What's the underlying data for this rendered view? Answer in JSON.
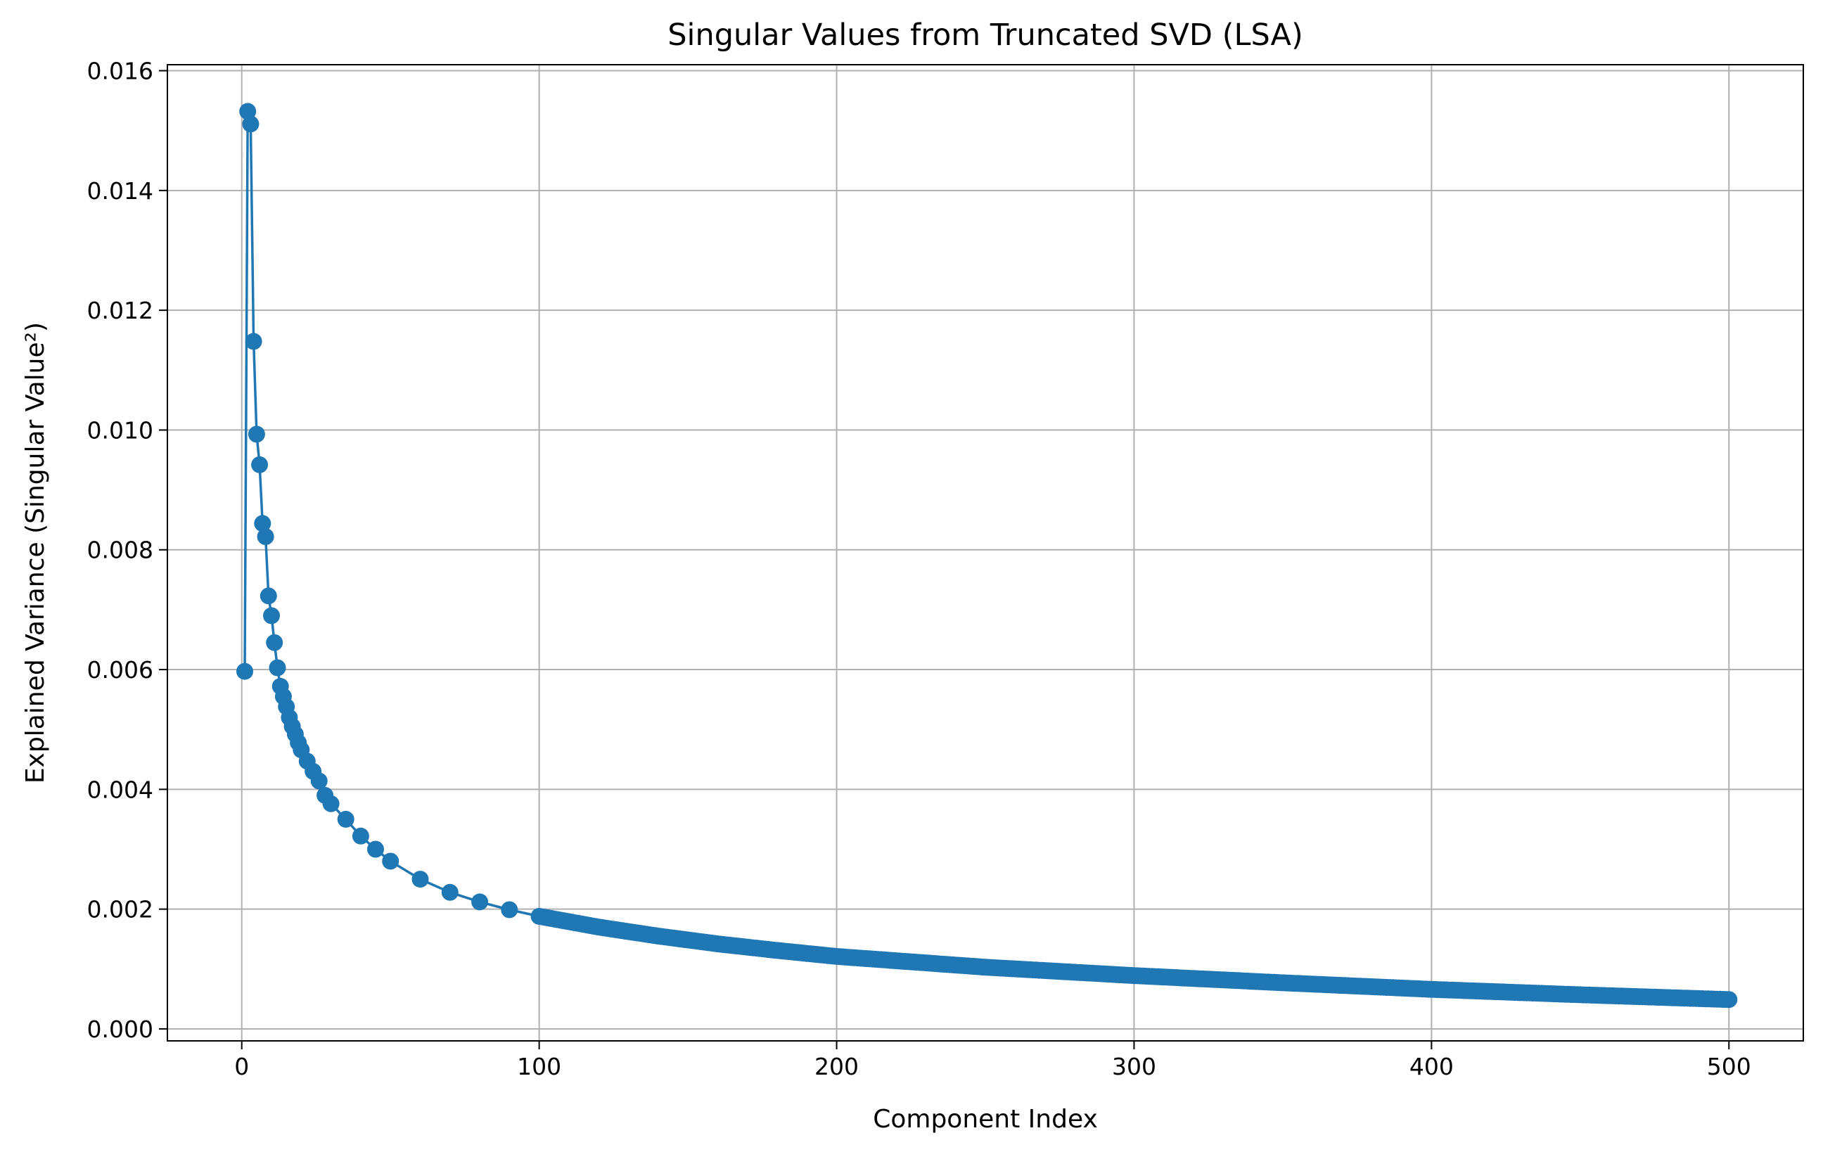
{
  "chart_data": {
    "type": "line",
    "title": "Singular Values from Truncated SVD (LSA)",
    "xlabel": "Component Index",
    "ylabel": "Explained Variance (Singular Value²)",
    "xlim": [
      -25,
      525
    ],
    "ylim": [
      -0.0002,
      0.0161
    ],
    "grid": true,
    "x_ticks": [
      {
        "value": 0,
        "label": "0"
      },
      {
        "value": 100,
        "label": "100"
      },
      {
        "value": 200,
        "label": "200"
      },
      {
        "value": 300,
        "label": "300"
      },
      {
        "value": 400,
        "label": "400"
      },
      {
        "value": 500,
        "label": "500"
      }
    ],
    "y_ticks": [
      {
        "value": 0.0,
        "label": "0.000"
      },
      {
        "value": 0.002,
        "label": "0.002"
      },
      {
        "value": 0.004,
        "label": "0.004"
      },
      {
        "value": 0.006,
        "label": "0.006"
      },
      {
        "value": 0.008,
        "label": "0.008"
      },
      {
        "value": 0.01,
        "label": "0.010"
      },
      {
        "value": 0.012,
        "label": "0.012"
      },
      {
        "value": 0.014,
        "label": "0.014"
      },
      {
        "value": 0.016,
        "label": "0.016"
      }
    ],
    "series": [
      {
        "color": "#1f77b4",
        "marker": "circle",
        "x": [
          1,
          2,
          3,
          4,
          5,
          6,
          7,
          8,
          9,
          10,
          11,
          12,
          13,
          14,
          15,
          16,
          17,
          18,
          19,
          20,
          22,
          24,
          26,
          28,
          30,
          35,
          40,
          45,
          50,
          60,
          70,
          80,
          90,
          100,
          120,
          140,
          160,
          180,
          200,
          250,
          300,
          350,
          400,
          450,
          500
        ],
        "y": [
          0.00597,
          0.01532,
          0.01511,
          0.01148,
          0.00993,
          0.00942,
          0.00844,
          0.00822,
          0.00723,
          0.0069,
          0.00645,
          0.00603,
          0.00572,
          0.00555,
          0.00538,
          0.0052,
          0.00505,
          0.00492,
          0.00478,
          0.00466,
          0.00447,
          0.0043,
          0.00414,
          0.0039,
          0.00376,
          0.0035,
          0.00322,
          0.003,
          0.0028,
          0.0025,
          0.00228,
          0.00212,
          0.00199,
          0.00188,
          0.0017,
          0.00155,
          0.00142,
          0.00131,
          0.00121,
          0.00103,
          0.00089,
          0.00077,
          0.00066,
          0.00057,
          0.00049
        ]
      }
    ]
  }
}
